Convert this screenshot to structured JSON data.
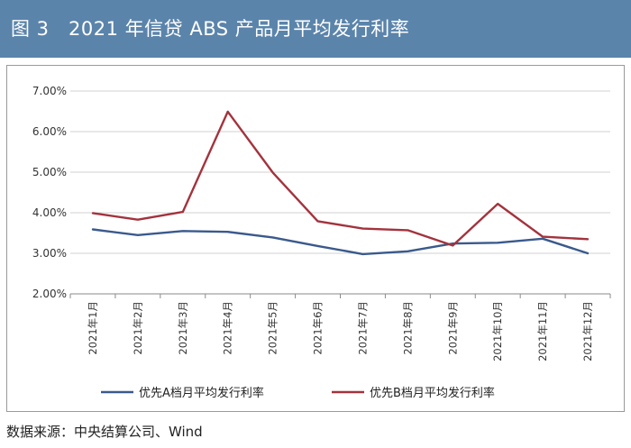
{
  "header": {
    "title": "图 3　2021 年信贷 ABS 产品月平均发行利率"
  },
  "footer": {
    "source": "数据来源：中央结算公司、Wind"
  },
  "colors": {
    "title_bar": "#5b84ab",
    "series_a": "#3a5a8c",
    "series_b": "#a3333d",
    "grid": "#d0d0d0"
  },
  "chart_data": {
    "type": "line",
    "categories": [
      "2021年1月",
      "2021年2月",
      "2021年3月",
      "2021年4月",
      "2021年5月",
      "2021年6月",
      "2021年7月",
      "2021年8月",
      "2021年9月",
      "2021年10月",
      "2021年11月",
      "2021年12月"
    ],
    "series": [
      {
        "name": "优先A档月平均发行利率",
        "values": [
          3.59,
          3.45,
          3.55,
          3.53,
          3.39,
          3.18,
          2.98,
          3.05,
          3.24,
          3.26,
          3.36,
          3.0
        ]
      },
      {
        "name": "优先B档月平均发行利率",
        "values": [
          3.99,
          3.83,
          4.02,
          6.49,
          4.99,
          3.79,
          3.61,
          3.57,
          3.19,
          4.22,
          3.41,
          3.35
        ]
      }
    ],
    "y_ticks": [
      "7.00%",
      "6.00%",
      "5.00%",
      "4.00%",
      "3.00%",
      "2.00%"
    ],
    "ylim": [
      2.0,
      7.0
    ],
    "ylabel": "",
    "xlabel": "",
    "grid": true,
    "legend_position": "bottom"
  }
}
